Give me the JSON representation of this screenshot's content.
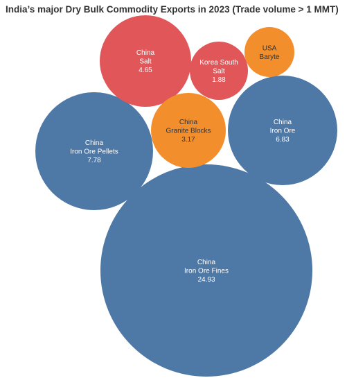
{
  "chart_data": {
    "type": "bubble",
    "title": "India’s major Dry Bulk Commodity Exports in 2023 (Trade volume > 1 MMT)",
    "colors": {
      "Iron": "#4E79A7",
      "Salt": "#E15759",
      "Other": "#F28E2B"
    },
    "bubbles": [
      {
        "country": "China",
        "commodity": "Iron Ore Fines",
        "value": "24.93",
        "group": "Iron"
      },
      {
        "country": "China",
        "commodity": "Iron Ore Pellets",
        "value": "7.78",
        "group": "Iron"
      },
      {
        "country": "China",
        "commodity": "Iron Ore",
        "value": "6.83",
        "group": "Iron"
      },
      {
        "country": "China",
        "commodity": "Salt",
        "value": "4.65",
        "group": "Salt"
      },
      {
        "country": "China",
        "commodity": "Granite Blocks",
        "value": "3.17",
        "group": "Other"
      },
      {
        "country": "Korea South",
        "commodity": "Salt",
        "value": "1.88",
        "group": "Salt"
      },
      {
        "country": "USA",
        "commodity": "Baryte",
        "value": "",
        "group": "Other"
      }
    ]
  }
}
